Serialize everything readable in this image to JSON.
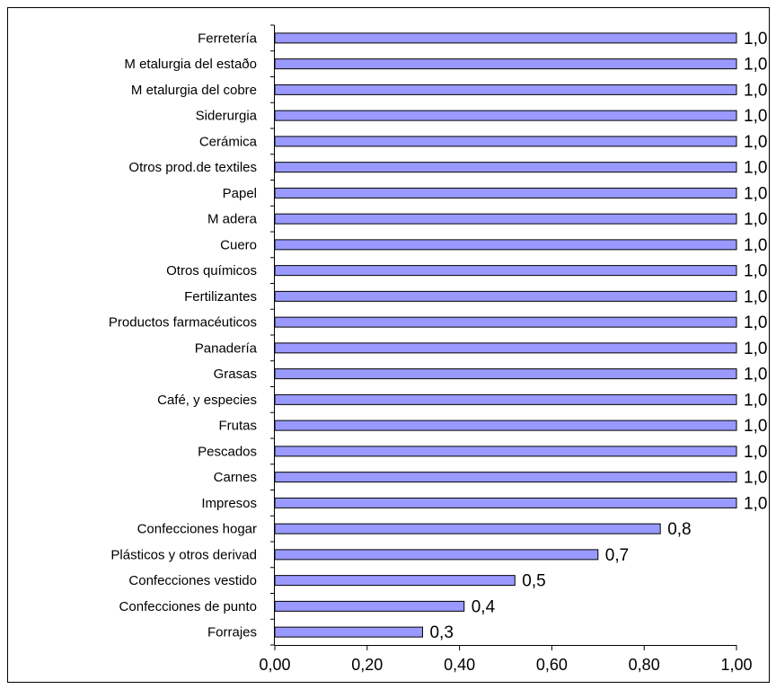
{
  "chart_data": {
    "type": "bar",
    "orientation": "horizontal",
    "title": "",
    "xlabel": "",
    "ylabel": "",
    "xlim": [
      0,
      1
    ],
    "xticks": [
      "0,00",
      "0,20",
      "0,40",
      "0,60",
      "0,80",
      "1,00"
    ],
    "grid": false,
    "legend": "none",
    "bar_color": "#9999ff",
    "categories": [
      "Ferretería",
      "M etalurgia del estaðo",
      "M etalurgia del cobre",
      "Siderurgia",
      "Cerámica",
      "Otros prod.de textiles",
      "Papel",
      "M adera",
      "Cuero",
      "Otros químicos",
      "Fertilizantes",
      "Productos farmacéuticos",
      "Panadería",
      "Grasas",
      "Café, y especies",
      "Frutas",
      "Pescados",
      "Carnes",
      "Impresos",
      "Confecciones hogar",
      "Plásticos y otros derivad",
      "Confecciones vestido",
      "Confecciones de punto",
      "Forrajes"
    ],
    "values": [
      1.0,
      1.0,
      1.0,
      1.0,
      1.0,
      1.0,
      1.0,
      1.0,
      1.0,
      1.0,
      1.0,
      1.0,
      1.0,
      1.0,
      1.0,
      1.0,
      1.0,
      1.0,
      1.0,
      0.835,
      0.7,
      0.52,
      0.41,
      0.32
    ],
    "data_labels": [
      "1,0",
      "1,0",
      "1,0",
      "1,0",
      "1,0",
      "1,0",
      "1,0",
      "1,0",
      "1,0",
      "1,0",
      "1,0",
      "1,0",
      "1,0",
      "1,0",
      "1,0",
      "1,0",
      "1,0",
      "1,0",
      "1,0",
      "0,8",
      "0,7",
      "0,5",
      "0,4",
      "0,3"
    ]
  }
}
